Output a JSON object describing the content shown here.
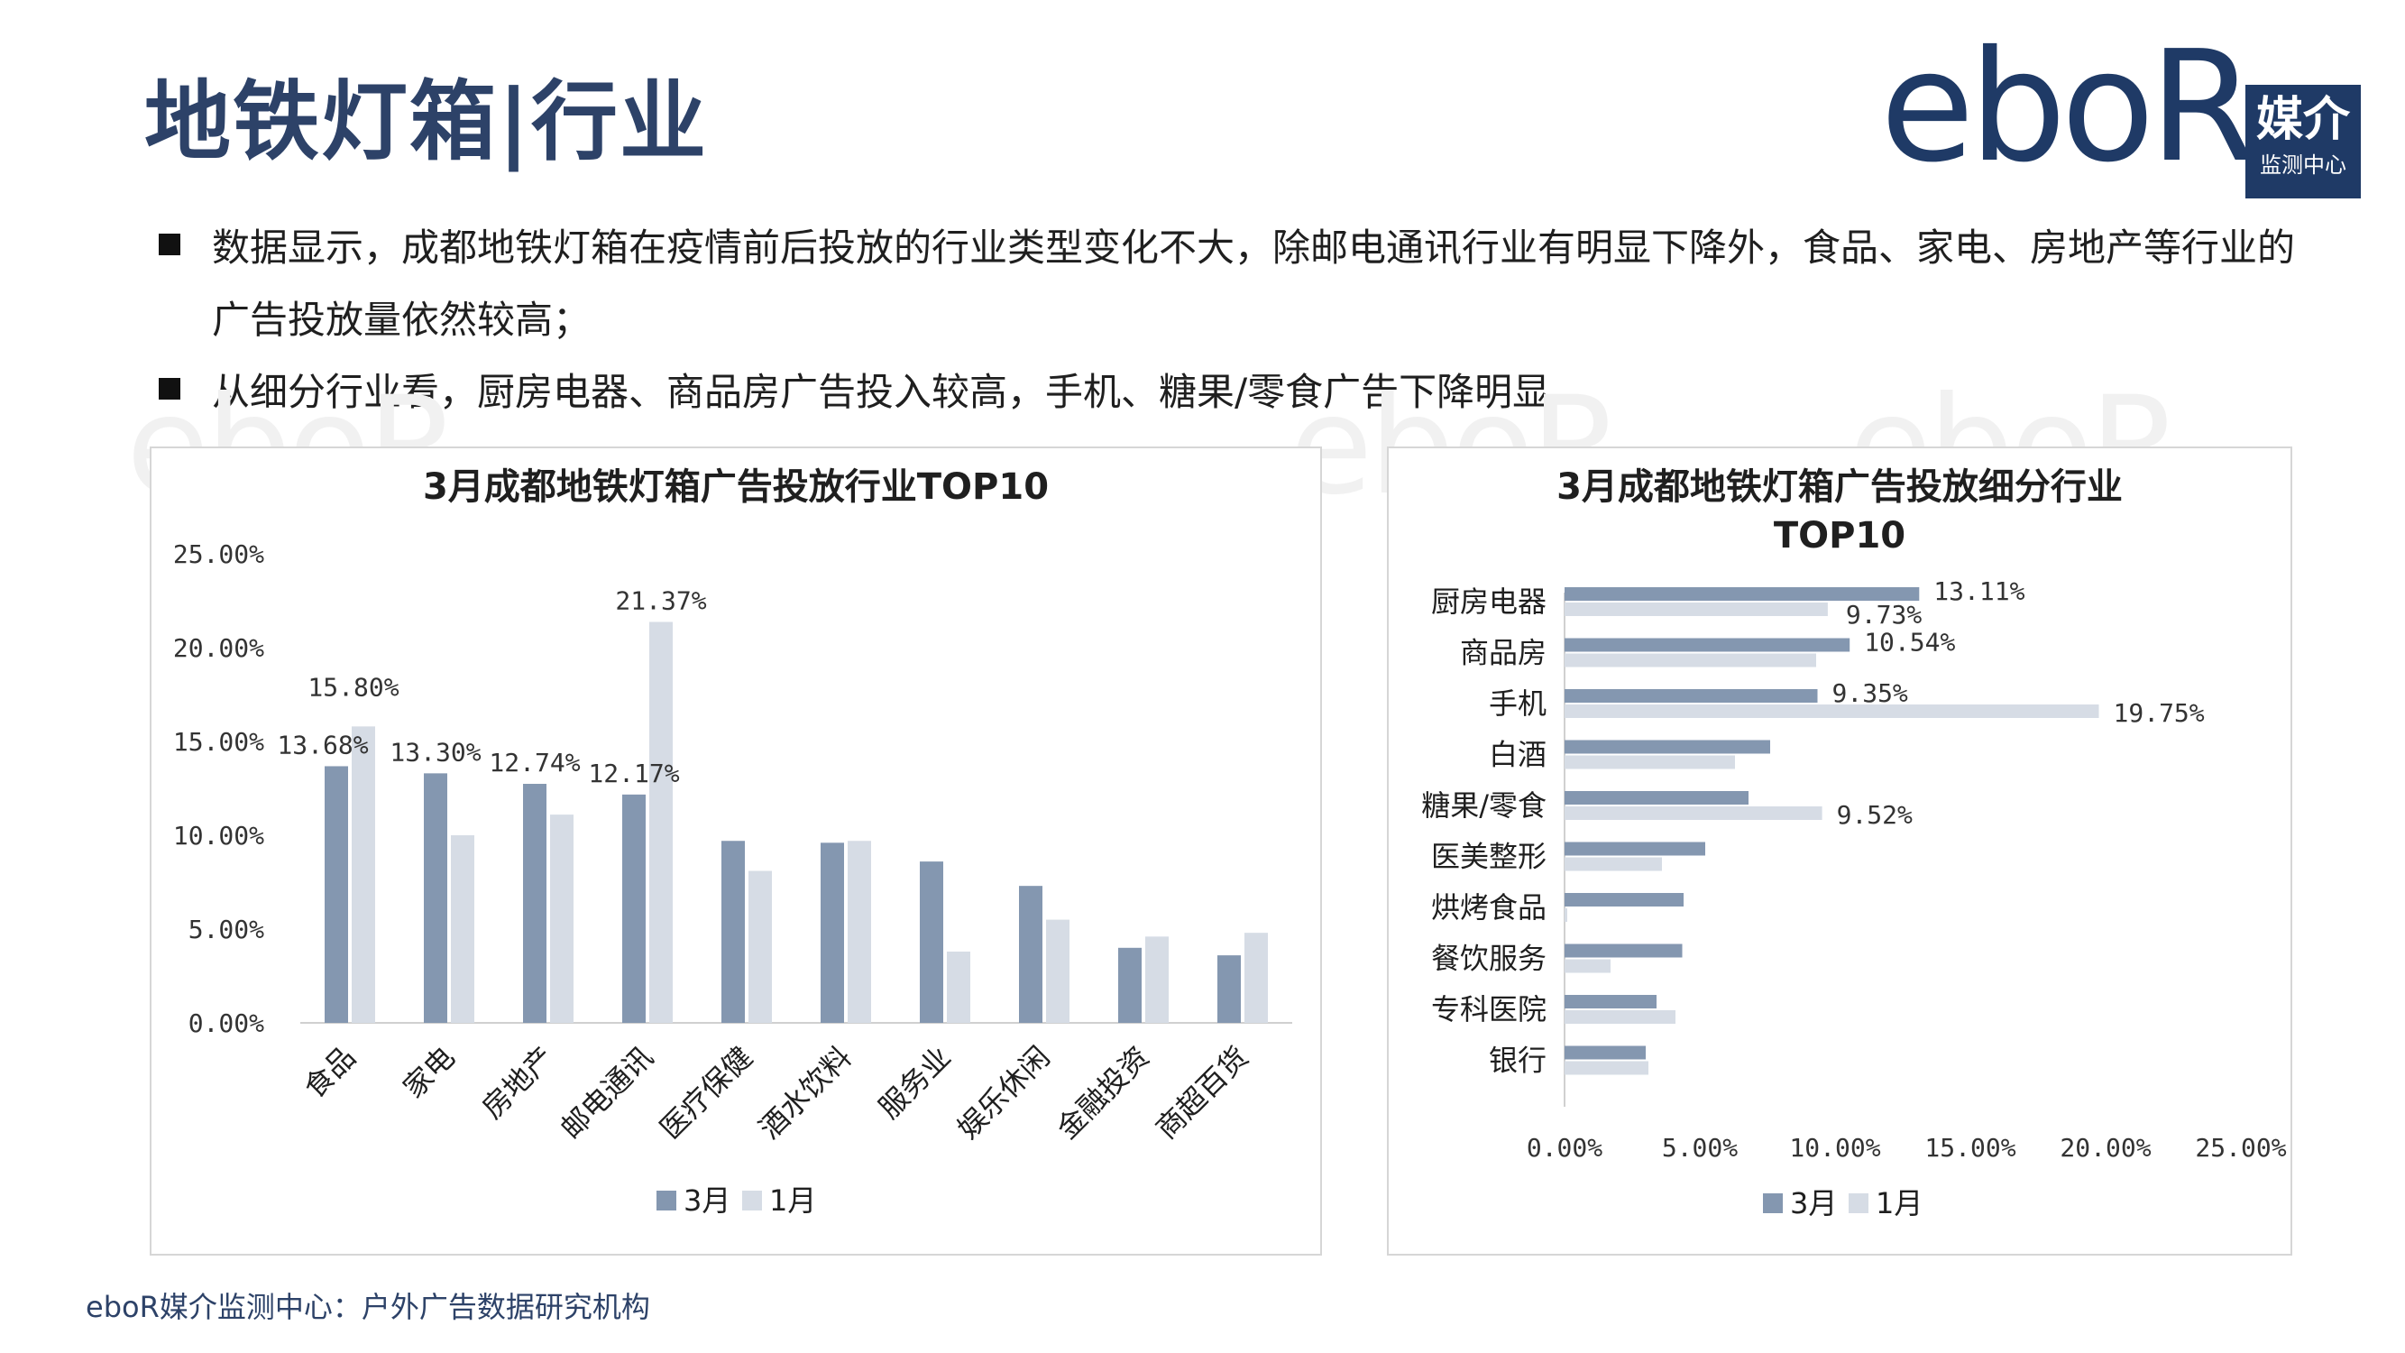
{
  "title": "地铁灯箱|行业",
  "logo": {
    "wordmark": "eboR",
    "box_main": "媒介",
    "box_sub": "监测中心"
  },
  "bullets": [
    "数据显示，成都地铁灯箱在疫情前后投放的行业类型变化不大，除邮电通讯行业有明显下降外，食品、家电、房地产等行业的广告投放量依然较高；",
    "从细分行业看，厨房电器、商品房广告投入较高，手机、糖果/零食广告下降明显"
  ],
  "footer": "eboR媒介监测中心：户外广告数据研究机构",
  "colors": {
    "march": "#8497b0",
    "january": "#d6dce5",
    "brand": "#1f3a66",
    "title": "#2d4268"
  },
  "chart_data": [
    {
      "type": "bar",
      "title": "3月成都地铁灯箱广告投放行业TOP10",
      "categories": [
        "食品",
        "家电",
        "房地产",
        "邮电通讯",
        "医疗保健",
        "酒水饮料",
        "服务业",
        "娱乐休闲",
        "金融投资",
        "商超百货"
      ],
      "series": [
        {
          "name": "3月",
          "values": [
            13.68,
            13.3,
            12.74,
            12.17,
            9.7,
            9.6,
            8.6,
            7.3,
            4.0,
            3.6
          ]
        },
        {
          "name": "1月",
          "values": [
            15.8,
            10.0,
            11.1,
            21.37,
            8.1,
            9.7,
            3.8,
            5.5,
            4.6,
            4.8
          ]
        }
      ],
      "data_labels": [
        {
          "series": 0,
          "index": 0,
          "text": "13.68%"
        },
        {
          "series": 1,
          "index": 0,
          "text": "15.80%"
        },
        {
          "series": 0,
          "index": 1,
          "text": "13.30%"
        },
        {
          "series": 0,
          "index": 2,
          "text": "12.74%"
        },
        {
          "series": 0,
          "index": 3,
          "text": "12.17%"
        },
        {
          "series": 1,
          "index": 3,
          "text": "21.37%"
        }
      ],
      "yticks": [
        "0.00%",
        "5.00%",
        "10.00%",
        "15.00%",
        "20.00%",
        "25.00%"
      ],
      "ylim": [
        0,
        25
      ],
      "legend": "bottom"
    },
    {
      "type": "bar",
      "orientation": "horizontal",
      "title": "3月成都地铁灯箱广告投放细分行业TOP10",
      "categories": [
        "厨房电器",
        "商品房",
        "手机",
        "白酒",
        "糖果/零食",
        "医美整形",
        "烘烤食品",
        "餐饮服务",
        "专科医院",
        "银行"
      ],
      "series": [
        {
          "name": "3月",
          "values": [
            13.11,
            10.54,
            9.35,
            7.6,
            6.8,
            5.2,
            4.4,
            4.35,
            3.4,
            3.0
          ]
        },
        {
          "name": "1月",
          "values": [
            9.73,
            9.3,
            19.75,
            6.3,
            9.52,
            3.6,
            0.1,
            1.7,
            4.1,
            3.1
          ]
        }
      ],
      "data_labels": [
        {
          "series": 0,
          "index": 0,
          "text": "13.11%"
        },
        {
          "series": 1,
          "index": 0,
          "text": "9.73%"
        },
        {
          "series": 0,
          "index": 1,
          "text": "10.54%"
        },
        {
          "series": 0,
          "index": 2,
          "text": "9.35%"
        },
        {
          "series": 1,
          "index": 2,
          "text": "19.75%"
        },
        {
          "series": 1,
          "index": 4,
          "text": "9.52%"
        }
      ],
      "xticks": [
        "0.00%",
        "5.00%",
        "10.00%",
        "15.00%",
        "20.00%",
        "25.00%"
      ],
      "xlim": [
        0,
        25
      ],
      "legend": "bottom"
    }
  ]
}
